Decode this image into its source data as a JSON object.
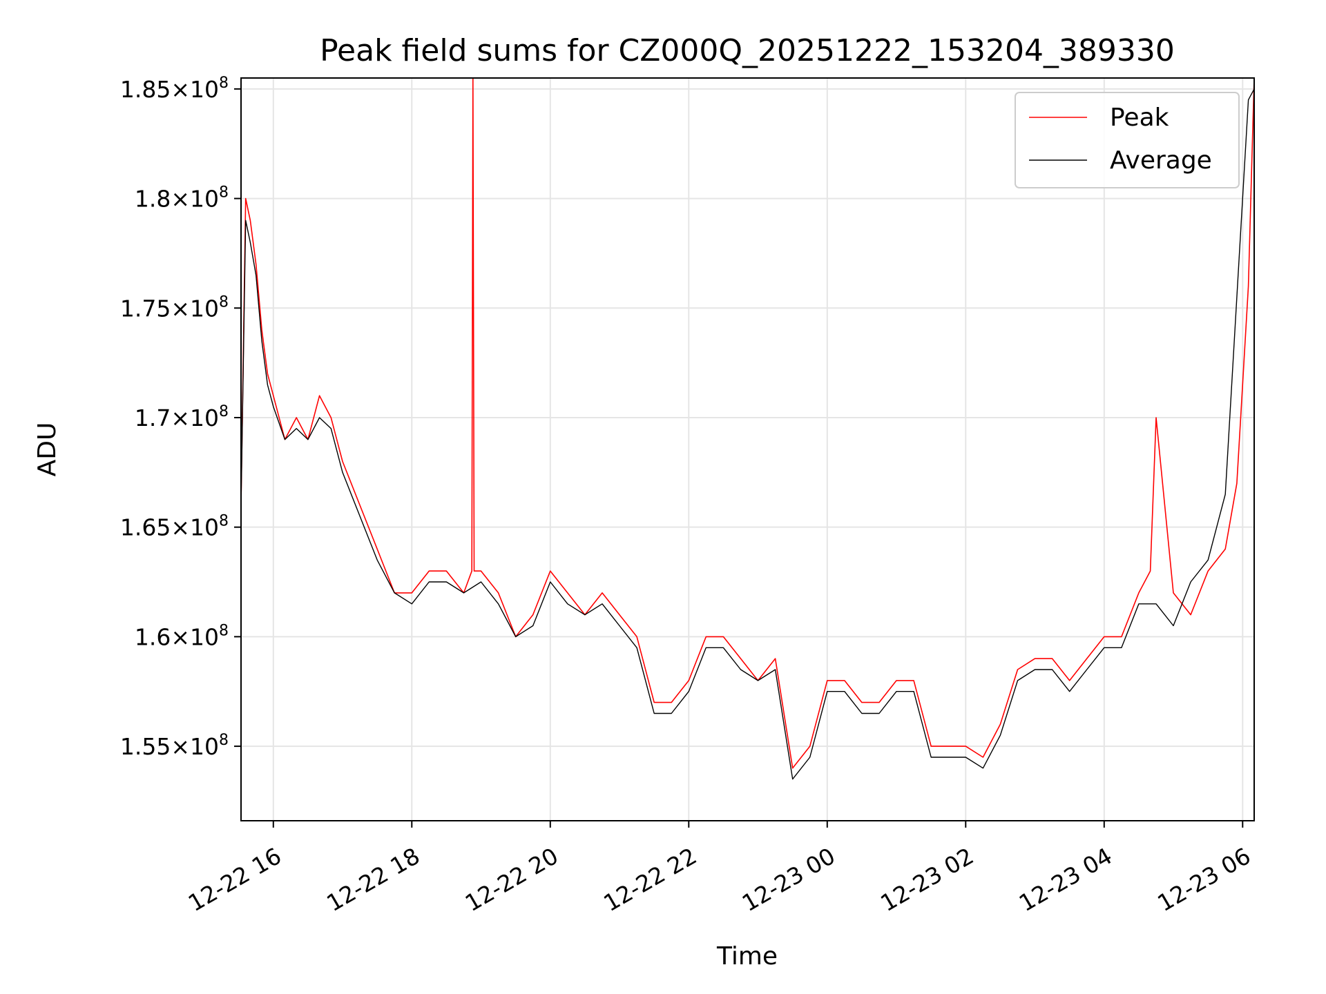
{
  "chart_data": {
    "type": "line",
    "title": "Peak field sums for CZ000Q_20251222_153204_389330",
    "xlabel": "Time",
    "ylabel": "ADU",
    "xlim": [
      "2025-12-22 15:32",
      "2025-12-23 06:10"
    ],
    "ylim": [
      151600000.0,
      185500000.0
    ],
    "grid": true,
    "legend_position": "top-right",
    "x_ticks": [
      {
        "time": "2025-12-22 16:00",
        "label": "12-22 16"
      },
      {
        "time": "2025-12-22 18:00",
        "label": "12-22 18"
      },
      {
        "time": "2025-12-22 20:00",
        "label": "12-22 20"
      },
      {
        "time": "2025-12-22 22:00",
        "label": "12-22 22"
      },
      {
        "time": "2025-12-23 00:00",
        "label": "12-23 00"
      },
      {
        "time": "2025-12-23 02:00",
        "label": "12-23 02"
      },
      {
        "time": "2025-12-23 04:00",
        "label": "12-23 04"
      },
      {
        "time": "2025-12-23 06:00",
        "label": "12-23 06"
      }
    ],
    "y_ticks": [
      {
        "value": 155000000.0,
        "mantissa": "1.55",
        "exponent": "8"
      },
      {
        "value": 160000000.0,
        "mantissa": "1.6",
        "exponent": "8"
      },
      {
        "value": 165000000.0,
        "mantissa": "1.65",
        "exponent": "8"
      },
      {
        "value": 170000000.0,
        "mantissa": "1.7",
        "exponent": "8"
      },
      {
        "value": 175000000.0,
        "mantissa": "1.75",
        "exponent": "8"
      },
      {
        "value": 180000000.0,
        "mantissa": "1.8",
        "exponent": "8"
      },
      {
        "value": 185000000.0,
        "mantissa": "1.85",
        "exponent": "8"
      }
    ],
    "series": [
      {
        "name": "Peak",
        "color": "#ff0000",
        "x": [
          "2025-12-22 15:32",
          "2025-12-22 15:36",
          "2025-12-22 15:40",
          "2025-12-22 15:45",
          "2025-12-22 15:50",
          "2025-12-22 15:55",
          "2025-12-22 16:00",
          "2025-12-22 16:10",
          "2025-12-22 16:20",
          "2025-12-22 16:30",
          "2025-12-22 16:40",
          "2025-12-22 16:50",
          "2025-12-22 17:00",
          "2025-12-22 17:15",
          "2025-12-22 17:30",
          "2025-12-22 17:45",
          "2025-12-22 18:00",
          "2025-12-22 18:15",
          "2025-12-22 18:30",
          "2025-12-22 18:45",
          "2025-12-22 18:52",
          "2025-12-22 18:53",
          "2025-12-22 18:54",
          "2025-12-22 19:00",
          "2025-12-22 19:15",
          "2025-12-22 19:30",
          "2025-12-22 19:45",
          "2025-12-22 20:00",
          "2025-12-22 20:15",
          "2025-12-22 20:30",
          "2025-12-22 20:45",
          "2025-12-22 21:00",
          "2025-12-22 21:15",
          "2025-12-22 21:30",
          "2025-12-22 21:45",
          "2025-12-22 22:00",
          "2025-12-22 22:15",
          "2025-12-22 22:30",
          "2025-12-22 22:45",
          "2025-12-22 23:00",
          "2025-12-22 23:15",
          "2025-12-22 23:30",
          "2025-12-22 23:45",
          "2025-12-23 00:00",
          "2025-12-23 00:15",
          "2025-12-23 00:30",
          "2025-12-23 00:45",
          "2025-12-23 01:00",
          "2025-12-23 01:15",
          "2025-12-23 01:30",
          "2025-12-23 01:45",
          "2025-12-23 02:00",
          "2025-12-23 02:15",
          "2025-12-23 02:30",
          "2025-12-23 02:45",
          "2025-12-23 03:00",
          "2025-12-23 03:15",
          "2025-12-23 03:30",
          "2025-12-23 03:45",
          "2025-12-23 04:00",
          "2025-12-23 04:15",
          "2025-12-23 04:30",
          "2025-12-23 04:40",
          "2025-12-23 04:45",
          "2025-12-23 05:00",
          "2025-12-23 05:15",
          "2025-12-23 05:30",
          "2025-12-23 05:45",
          "2025-12-23 05:55",
          "2025-12-23 06:05",
          "2025-12-23 06:10"
        ],
        "y": [
          166000000.0,
          180000000.0,
          179000000.0,
          177000000.0,
          174000000.0,
          172000000.0,
          171000000.0,
          169000000.0,
          170000000.0,
          169000000.0,
          171000000.0,
          170000000.0,
          168000000.0,
          166000000.0,
          164000000.0,
          162000000.0,
          162000000.0,
          163000000.0,
          163000000.0,
          162000000.0,
          163000000.0,
          185500000.0,
          163000000.0,
          163000000.0,
          162000000.0,
          160000000.0,
          161000000.0,
          163000000.0,
          162000000.0,
          161000000.0,
          162000000.0,
          161000000.0,
          160000000.0,
          157000000.0,
          157000000.0,
          158000000.0,
          160000000.0,
          160000000.0,
          159000000.0,
          158000000.0,
          159000000.0,
          154000000.0,
          155000000.0,
          158000000.0,
          158000000.0,
          157000000.0,
          157000000.0,
          158000000.0,
          158000000.0,
          155000000.0,
          155000000.0,
          155000000.0,
          154500000.0,
          156000000.0,
          158500000.0,
          159000000.0,
          159000000.0,
          158000000.0,
          159000000.0,
          160000000.0,
          160000000.0,
          162000000.0,
          163000000.0,
          170000000.0,
          162000000.0,
          161000000.0,
          163000000.0,
          164000000.0,
          167000000.0,
          176000000.0,
          185500000.0
        ]
      },
      {
        "name": "Average",
        "color": "#000000",
        "x": [
          "2025-12-22 15:32",
          "2025-12-22 15:36",
          "2025-12-22 15:40",
          "2025-12-22 15:45",
          "2025-12-22 15:50",
          "2025-12-22 15:55",
          "2025-12-22 16:00",
          "2025-12-22 16:10",
          "2025-12-22 16:20",
          "2025-12-22 16:30",
          "2025-12-22 16:40",
          "2025-12-22 16:50",
          "2025-12-22 17:00",
          "2025-12-22 17:15",
          "2025-12-22 17:30",
          "2025-12-22 17:45",
          "2025-12-22 18:00",
          "2025-12-22 18:15",
          "2025-12-22 18:30",
          "2025-12-22 18:45",
          "2025-12-22 19:00",
          "2025-12-22 19:15",
          "2025-12-22 19:30",
          "2025-12-22 19:45",
          "2025-12-22 20:00",
          "2025-12-22 20:15",
          "2025-12-22 20:30",
          "2025-12-22 20:45",
          "2025-12-22 21:00",
          "2025-12-22 21:15",
          "2025-12-22 21:30",
          "2025-12-22 21:45",
          "2025-12-22 22:00",
          "2025-12-22 22:15",
          "2025-12-22 22:30",
          "2025-12-22 22:45",
          "2025-12-22 23:00",
          "2025-12-22 23:15",
          "2025-12-22 23:30",
          "2025-12-22 23:45",
          "2025-12-23 00:00",
          "2025-12-23 00:15",
          "2025-12-23 00:30",
          "2025-12-23 00:45",
          "2025-12-23 01:00",
          "2025-12-23 01:15",
          "2025-12-23 01:30",
          "2025-12-23 01:45",
          "2025-12-23 02:00",
          "2025-12-23 02:15",
          "2025-12-23 02:30",
          "2025-12-23 02:45",
          "2025-12-23 03:00",
          "2025-12-23 03:15",
          "2025-12-23 03:30",
          "2025-12-23 03:45",
          "2025-12-23 04:00",
          "2025-12-23 04:15",
          "2025-12-23 04:30",
          "2025-12-23 04:45",
          "2025-12-23 05:00",
          "2025-12-23 05:15",
          "2025-12-23 05:30",
          "2025-12-23 05:45",
          "2025-12-23 05:55",
          "2025-12-23 06:05",
          "2025-12-23 06:10"
        ],
        "y": [
          166000000.0,
          179000000.0,
          178000000.0,
          176500000.0,
          173500000.0,
          171500000.0,
          170500000.0,
          169000000.0,
          169500000.0,
          169000000.0,
          170000000.0,
          169500000.0,
          167500000.0,
          165500000.0,
          163500000.0,
          162000000.0,
          161500000.0,
          162500000.0,
          162500000.0,
          162000000.0,
          162500000.0,
          161500000.0,
          160000000.0,
          160500000.0,
          162500000.0,
          161500000.0,
          161000000.0,
          161500000.0,
          160500000.0,
          159500000.0,
          156500000.0,
          156500000.0,
          157500000.0,
          159500000.0,
          159500000.0,
          158500000.0,
          158000000.0,
          158500000.0,
          153500000.0,
          154500000.0,
          157500000.0,
          157500000.0,
          156500000.0,
          156500000.0,
          157500000.0,
          157500000.0,
          154500000.0,
          154500000.0,
          154500000.0,
          154000000.0,
          155500000.0,
          158000000.0,
          158500000.0,
          158500000.0,
          157500000.0,
          158500000.0,
          159500000.0,
          159500000.0,
          161500000.0,
          161500000.0,
          160500000.0,
          162500000.0,
          163500000.0,
          166500000.0,
          175500000.0,
          184500000.0,
          185000000.0
        ]
      }
    ]
  }
}
